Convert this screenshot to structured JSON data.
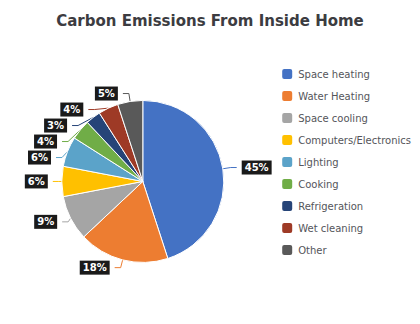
{
  "chart_data": {
    "type": "pie",
    "title": "Carbon Emissions From Inside Home",
    "categories": [
      "Space heating",
      "Water Heating",
      "Space cooling",
      "Computers/Electronics",
      "Lighting",
      "Cooking",
      "Refrigeration",
      "Wet cleaning",
      "Other"
    ],
    "values": [
      45,
      18,
      9,
      6,
      6,
      4,
      3,
      4,
      5
    ],
    "value_labels": [
      "45%",
      "18%",
      "9%",
      "6%",
      "6%",
      "4%",
      "3%",
      "4%",
      "5%"
    ],
    "colors": [
      "#4472C4",
      "#ED7D31",
      "#A5A5A5",
      "#FFC000",
      "#5BA3C9",
      "#70AD47",
      "#264478",
      "#9E3A26",
      "#595959"
    ],
    "data_labels": true,
    "legend": "right"
  }
}
